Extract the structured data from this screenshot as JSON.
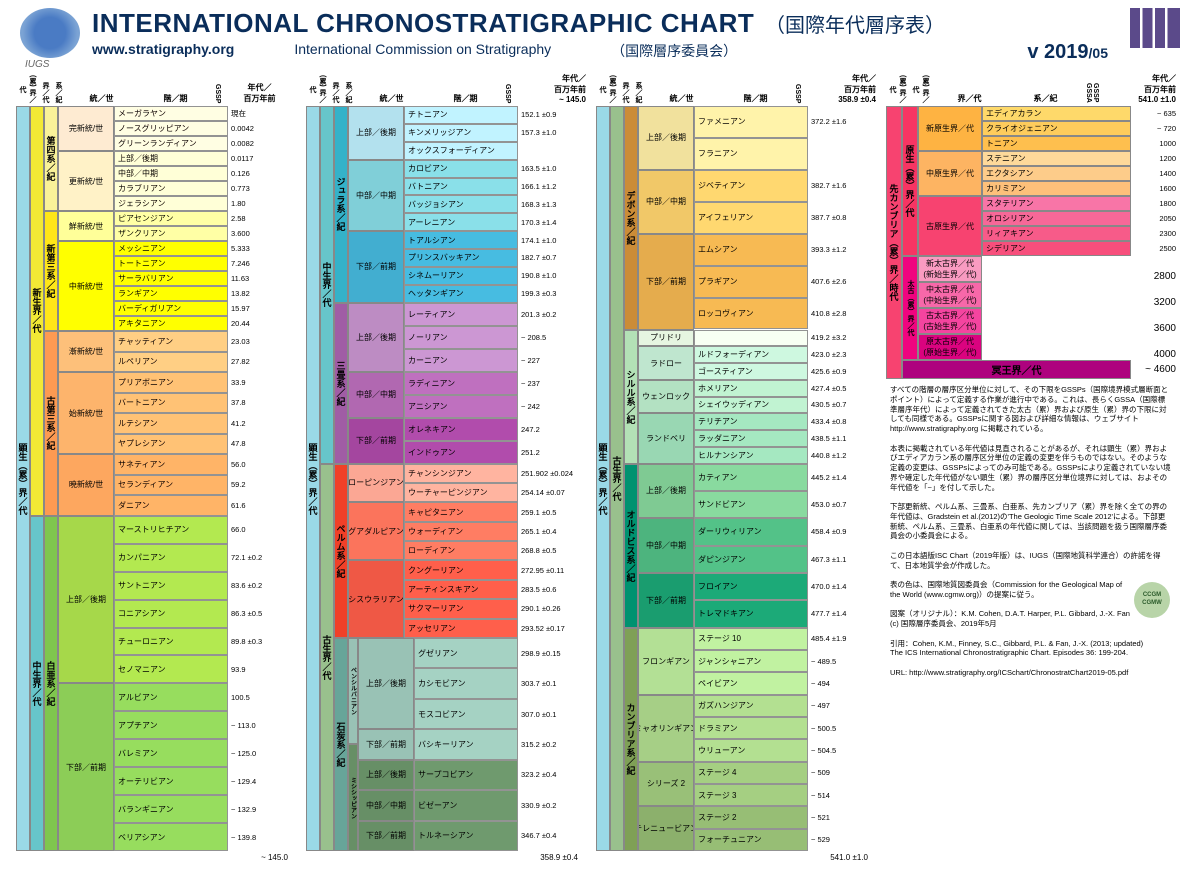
{
  "header": {
    "title": "INTERNATIONAL CHRONOSTRATIGRAPHIC CHART",
    "title_jp": "（国際年代層序表）",
    "url": "www.stratigraphy.org",
    "commission": "International Commission on Stratigraphy",
    "commission_jp": "（国際層序委員会）",
    "version": "v 2019",
    "version_sub": "/05",
    "logo_label": "IUGS"
  },
  "column_headers": {
    "eonothem": "(累) 界／代",
    "erathem": "界／代",
    "system": "系／紀",
    "series": "統／世",
    "stage": "階／期",
    "gssp": "GSSP",
    "age": "年代／\n百万年前",
    "gssa": "GSSP\nGSSA"
  },
  "colors": {
    "phanerozoic": "#9ad9e7",
    "cenozoic": "#f2e935",
    "mesozoic": "#67c5ca",
    "paleozoic": "#99c08d",
    "quaternary": "#f9f299",
    "neogene": "#ffe619",
    "paleogene": "#fd9a52",
    "cretaceous": "#7fc64e",
    "jurassic": "#34b2c9",
    "triassic": "#a05da5",
    "permian": "#f04028",
    "carboniferous": "#67a599",
    "pennsylvanian": "#99c2b5",
    "mississippian": "#678f66",
    "devonian": "#cb8c37",
    "silurian": "#b3e1b6",
    "ordovician": "#009270",
    "cambrian": "#7fa056",
    "precambrian": "#f74370",
    "proterozoic": "#f73563",
    "neoproterozoic": "#feb342",
    "mesoproterozoic": "#fdb462",
    "paleoproterozoic": "#f74370",
    "archean": "#f0047f",
    "neoarchean": "#f99bc1",
    "mesoarchean": "#f768a9",
    "paleoarchean": "#f4449f",
    "eoarchean": "#da037f",
    "hadean": "#ae027e",
    "holocene": "#feebd2",
    "pleistocene": "#fff2c7",
    "pliocene": "#ffff99",
    "miocene": "#ffff00",
    "oligocene": "#fdc07a",
    "eocene": "#fdb46c",
    "paleocene": "#fda75f",
    "upper_cret": "#a6d84a",
    "lower_cret": "#8ccd57",
    "upper_jur": "#b3e1ee",
    "middle_jur": "#80cfd8",
    "lower_jur": "#42aed0",
    "upper_tri": "#bd8cc3",
    "middle_tri": "#b168b1",
    "lower_tri": "#a4469f",
    "lopingian": "#fba794",
    "guadalupian": "#fb745c",
    "cisuralian": "#ef5845",
    "upper_dev": "#f1e19d",
    "middle_dev": "#f1c868",
    "lower_dev": "#e5ac4d",
    "pridoli": "#e6f5e1",
    "ludlow": "#bfe6cf",
    "wenlock": "#b3e1c2",
    "llandovery": "#99d7b3",
    "upper_ord": "#7fca93",
    "middle_ord": "#4db47e",
    "lower_ord": "#1a9d6f",
    "furongian": "#b3e095",
    "miaolingian": "#a6cf86",
    "series2": "#99c078",
    "terreneuvian": "#8cb06c",
    "ediacaran": "#fed96a",
    "cryogenian": "#fecc5c",
    "tonian": "#febf4e",
    "stenian": "#fed99a",
    "ectasian": "#fdcc8a",
    "calymmian": "#fdc07a",
    "statherian": "#f875a7",
    "orosirian": "#f76898",
    "rhyacian": "#f75b89",
    "siderian": "#f74f7c"
  },
  "col1": {
    "eon": "顕生（累）界／代",
    "era1": {
      "label": "新生界／代",
      "color": "cenozoic"
    },
    "era2": {
      "label": "中生界／代",
      "color": "mesozoic"
    },
    "sys1": {
      "label": "第四系／紀",
      "color": "quaternary"
    },
    "sys2": {
      "label": "新第三系／紀",
      "color": "neogene"
    },
    "sys3": {
      "label": "古第三系／紀",
      "color": "paleogene"
    },
    "sys4": {
      "label": "白亜系／紀",
      "color": "cretaceous"
    },
    "series": [
      {
        "label": "完新統/世",
        "color": "holocene",
        "stages": [
          {
            "l": "メーガラヤン",
            "a": "現在"
          },
          {
            "l": "ノースグリッピアン",
            "a": "0.0042"
          },
          {
            "l": "グリーンランディアン",
            "a": "0.0082"
          }
        ]
      },
      {
        "label": "更新統/世",
        "color": "pleistocene",
        "stages": [
          {
            "l": "上部／後期",
            "a": "0.0117"
          },
          {
            "l": "中部／中期",
            "a": "0.126"
          },
          {
            "l": "カラブリアン",
            "a": "0.773"
          },
          {
            "l": "ジェラシアン",
            "a": "1.80"
          }
        ]
      },
      {
        "label": "鮮新統/世",
        "color": "pliocene",
        "stages": [
          {
            "l": "ピアセンジアン",
            "a": "2.58"
          },
          {
            "l": "ザンクリアン",
            "a": "3.600"
          }
        ]
      },
      {
        "label": "中新統/世",
        "color": "miocene",
        "stages": [
          {
            "l": "メッシニアン",
            "a": "5.333"
          },
          {
            "l": "トートニアン",
            "a": "7.246"
          },
          {
            "l": "サーラバリアン",
            "a": "11.63"
          },
          {
            "l": "ランギアン",
            "a": "13.82"
          },
          {
            "l": "バーディガリアン",
            "a": "15.97"
          },
          {
            "l": "アキタニアン",
            "a": "20.44"
          }
        ]
      },
      {
        "label": "漸新統/世",
        "color": "oligocene",
        "stages": [
          {
            "l": "チャッティアン",
            "a": "23.03"
          },
          {
            "l": "ルペリアン",
            "a": "27.82"
          }
        ]
      },
      {
        "label": "始新統/世",
        "color": "eocene",
        "stages": [
          {
            "l": "プリアボニアン",
            "a": "33.9"
          },
          {
            "l": "バートニアン",
            "a": "37.8"
          },
          {
            "l": "ルテシアン",
            "a": "41.2"
          },
          {
            "l": "ヤプレシアン",
            "a": "47.8"
          }
        ]
      },
      {
        "label": "暁新統/世",
        "color": "paleocene",
        "stages": [
          {
            "l": "サネティアン",
            "a": "56.0"
          },
          {
            "l": "セランディアン",
            "a": "59.2"
          },
          {
            "l": "ダニアン",
            "a": "61.6"
          }
        ]
      },
      {
        "label": "上部／後期",
        "color": "upper_cret",
        "stages": [
          {
            "l": "マーストリヒチアン",
            "a": "66.0"
          },
          {
            "l": "カンパニアン",
            "a": "72.1 ±0.2"
          },
          {
            "l": "サントニアン",
            "a": "83.6 ±0.2"
          },
          {
            "l": "コニアシアン",
            "a": "86.3 ±0.5"
          },
          {
            "l": "チューロニアン",
            "a": "89.8 ±0.3"
          },
          {
            "l": "セノマニアン",
            "a": "93.9"
          }
        ]
      },
      {
        "label": "下部／前期",
        "color": "lower_cret",
        "stages": [
          {
            "l": "アルビアン",
            "a": "100.5"
          },
          {
            "l": "アプチアン",
            "a": "~ 113.0"
          },
          {
            "l": "バレミアン",
            "a": "~ 125.0"
          },
          {
            "l": "オーテリビアン",
            "a": "~ 129.4"
          },
          {
            "l": "バランギニアン",
            "a": "~ 132.9"
          },
          {
            "l": "ベリアシアン",
            "a": "~ 139.8"
          }
        ]
      }
    ],
    "bottom_age": "~ 145.0"
  },
  "col2": {
    "top_age": "~ 145.0",
    "eon": "顕生（累）界／代",
    "era1": {
      "label": "中生界／代",
      "color": "mesozoic"
    },
    "era2": {
      "label": "古生界／代",
      "color": "paleozoic"
    },
    "sys1": {
      "label": "ジュラ系／紀",
      "color": "jurassic"
    },
    "sys2": {
      "label": "三畳系／紀",
      "color": "triassic"
    },
    "sys3": {
      "label": "ペルム系／紀",
      "color": "permian"
    },
    "sys4": {
      "label": "石炭系／紀",
      "color": "carboniferous"
    },
    "sys4a": {
      "label": "ペンシルバニアン",
      "color": "pennsylvanian"
    },
    "sys4b": {
      "label": "ミシシッピアン",
      "color": "mississippian"
    },
    "series": [
      {
        "label": "上部／後期",
        "color": "upper_jur",
        "stages": [
          {
            "l": "チトニアン",
            "a": "152.1 ±0.9"
          },
          {
            "l": "キンメリッジアン",
            "a": "157.3 ±1.0"
          },
          {
            "l": "オックスフォーディアン",
            "a": ""
          }
        ]
      },
      {
        "label": "中部／中期",
        "color": "middle_jur",
        "stages": [
          {
            "l": "カロビアン",
            "a": "163.5 ±1.0"
          },
          {
            "l": "バトニアン",
            "a": "166.1 ±1.2"
          },
          {
            "l": "バッジョシアン",
            "a": "168.3 ±1.3"
          },
          {
            "l": "アーレニアン",
            "a": "170.3 ±1.4"
          }
        ]
      },
      {
        "label": "下部／前期",
        "color": "lower_jur",
        "stages": [
          {
            "l": "トアルシアン",
            "a": "174.1 ±1.0"
          },
          {
            "l": "プリンスバッキアン",
            "a": "182.7 ±0.7"
          },
          {
            "l": "シネムーリアン",
            "a": "190.8 ±1.0"
          },
          {
            "l": "ヘッタンギアン",
            "a": "199.3 ±0.3"
          }
        ]
      },
      {
        "label": "上部／後期",
        "color": "upper_tri",
        "stages": [
          {
            "l": "レーティアン",
            "a": "201.3 ±0.2"
          },
          {
            "l": "ノーリアン",
            "a": "~ 208.5"
          },
          {
            "l": "カーニアン",
            "a": "~ 227"
          }
        ]
      },
      {
        "label": "中部／中期",
        "color": "middle_tri",
        "stages": [
          {
            "l": "ラディニアン",
            "a": "~ 237"
          },
          {
            "l": "アニシアン",
            "a": "~ 242"
          }
        ]
      },
      {
        "label": "下部／前期",
        "color": "lower_tri",
        "stages": [
          {
            "l": "オレネキアン",
            "a": "247.2"
          },
          {
            "l": "インドゥアン",
            "a": "251.2"
          }
        ]
      },
      {
        "label": "ローピンジアン",
        "color": "lopingian",
        "stages": [
          {
            "l": "チャンシンジアン",
            "a": "251.902 ±0.024"
          },
          {
            "l": "ウーチャーピンジアン",
            "a": "254.14 ±0.07"
          }
        ]
      },
      {
        "label": "グアダルピアン",
        "color": "guadalupian",
        "stages": [
          {
            "l": "キャピタニアン",
            "a": "259.1 ±0.5"
          },
          {
            "l": "ウォーディアン",
            "a": "265.1 ±0.4"
          },
          {
            "l": "ローディアン",
            "a": "268.8 ±0.5"
          }
        ]
      },
      {
        "label": "シスウラリアン",
        "color": "cisuralian",
        "stages": [
          {
            "l": "クングーリアン",
            "a": "272.95 ±0.11"
          },
          {
            "l": "アーティンスキアン",
            "a": "283.5 ±0.6"
          },
          {
            "l": "サクマーリアン",
            "a": "290.1 ±0.26"
          },
          {
            "l": "アッセリアン",
            "a": "293.52 ±0.17"
          }
        ]
      },
      {
        "label": "上部／後期",
        "color": "pennsylvanian",
        "stages": [
          {
            "l": "グゼリアン",
            "a": "298.9 ±0.15"
          },
          {
            "l": "カシモビアン",
            "a": "303.7 ±0.1"
          },
          {
            "l": "モスコビアン",
            "a": "307.0 ±0.1"
          }
        ]
      },
      {
        "label": "下部／前期",
        "color": "pennsylvanian",
        "stages": [
          {
            "l": "バシキーリアン",
            "a": "315.2 ±0.2"
          }
        ]
      },
      {
        "label": "上部／後期",
        "color": "mississippian",
        "stages": [
          {
            "l": "サープコビアン",
            "a": "323.2 ±0.4"
          }
        ]
      },
      {
        "label": "中部／中期",
        "color": "mississippian",
        "stages": [
          {
            "l": "ビゼーアン",
            "a": "330.9 ±0.2"
          }
        ]
      },
      {
        "label": "下部／前期",
        "color": "mississippian",
        "stages": [
          {
            "l": "トルネーシアン",
            "a": "346.7 ±0.4"
          }
        ]
      }
    ],
    "bottom_age": "358.9 ±0.4"
  },
  "col3": {
    "top_age": "358.9 ±0.4",
    "eon": "顕生（累）界／代",
    "era": {
      "label": "古生界／代",
      "color": "paleozoic"
    },
    "sys1": {
      "label": "デボン系／紀",
      "color": "devonian"
    },
    "sys2": {
      "label": "シルル系／紀",
      "color": "silurian"
    },
    "sys3": {
      "label": "オルドビス系／紀",
      "color": "ordovician"
    },
    "sys4": {
      "label": "カンブリア系／紀",
      "color": "cambrian"
    },
    "series": [
      {
        "label": "上部／後期",
        "color": "upper_dev",
        "stages": [
          {
            "l": "ファメニアン",
            "a": "372.2 ±1.6"
          },
          {
            "l": "フラニアン",
            "a": ""
          }
        ]
      },
      {
        "label": "中部／中期",
        "color": "middle_dev",
        "stages": [
          {
            "l": "ジベティアン",
            "a": "382.7 ±1.6"
          },
          {
            "l": "アイフェリアン",
            "a": "387.7 ±0.8"
          }
        ]
      },
      {
        "label": "下部／前期",
        "color": "lower_dev",
        "stages": [
          {
            "l": "エムシアン",
            "a": "393.3 ±1.2"
          },
          {
            "l": "プラギアン",
            "a": "407.6 ±2.6"
          },
          {
            "l": "ロッコヴィアン",
            "a": "410.8 ±2.8"
          }
        ]
      },
      {
        "label": "プリドリ",
        "color": "pridoli",
        "stages": [
          {
            "l": "",
            "a": "419.2 ±3.2"
          }
        ]
      },
      {
        "label": "ラドロー",
        "color": "ludlow",
        "stages": [
          {
            "l": "ルドフォーディアン",
            "a": "423.0 ±2.3"
          },
          {
            "l": "ゴースティアン",
            "a": "425.6 ±0.9"
          }
        ]
      },
      {
        "label": "ウェンロック",
        "color": "wenlock",
        "stages": [
          {
            "l": "ホメリアン",
            "a": "427.4 ±0.5"
          },
          {
            "l": "シェイウッディアン",
            "a": "430.5 ±0.7"
          }
        ]
      },
      {
        "label": "ランドベリ",
        "color": "llandovery",
        "stages": [
          {
            "l": "テリチアン",
            "a": "433.4 ±0.8"
          },
          {
            "l": "ラッダニアン",
            "a": "438.5 ±1.1"
          },
          {
            "l": "ヒルナンシアン",
            "a": "440.8 ±1.2"
          }
        ]
      },
      {
        "label": "上部／後期",
        "color": "upper_ord",
        "stages": [
          {
            "l": "カティアン",
            "a": "445.2 ±1.4"
          },
          {
            "l": "サンドビアン",
            "a": "453.0 ±0.7"
          }
        ]
      },
      {
        "label": "中部／中期",
        "color": "middle_ord",
        "stages": [
          {
            "l": "ダーリウィリアン",
            "a": "458.4 ±0.9"
          },
          {
            "l": "ダピンジアン",
            "a": "467.3 ±1.1"
          }
        ]
      },
      {
        "label": "下部／前期",
        "color": "lower_ord",
        "stages": [
          {
            "l": "フロイアン",
            "a": "470.0 ±1.4"
          },
          {
            "l": "トレマドキアン",
            "a": "477.7 ±1.4"
          }
        ]
      },
      {
        "label": "フロンギアン",
        "color": "furongian",
        "stages": [
          {
            "l": "ステージ 10",
            "a": "485.4 ±1.9"
          },
          {
            "l": "ジャンシャニアン",
            "a": "~ 489.5"
          },
          {
            "l": "ペイビアン",
            "a": "~ 494"
          }
        ]
      },
      {
        "label": "ミャオリンギアン",
        "color": "miaolingian",
        "stages": [
          {
            "l": "ガズハンジアン",
            "a": "~ 497"
          },
          {
            "l": "ドラミアン",
            "a": "~ 500.5"
          },
          {
            "l": "ウリューアン",
            "a": "~ 504.5"
          }
        ]
      },
      {
        "label": "シリーズ 2",
        "color": "series2",
        "stages": [
          {
            "l": "ステージ 4",
            "a": "~ 509"
          },
          {
            "l": "ステージ 3",
            "a": "~ 514"
          }
        ]
      },
      {
        "label": "テレニュービアン",
        "color": "terreneuvian",
        "stages": [
          {
            "l": "ステージ 2",
            "a": "~ 521"
          },
          {
            "l": "フォーチュニアン",
            "a": "~ 529"
          }
        ]
      }
    ],
    "bottom_age": "541.0 ±1.0"
  },
  "col4": {
    "top_age": "541.0 ±1.0",
    "eon1": {
      "label": "先カンブリア（累）界／時代",
      "color": "precambrian"
    },
    "eon2": {
      "label": "原生（累）界／代",
      "color": "proterozoic"
    },
    "eon3": {
      "label": "太古（累）界／代",
      "color": "archean"
    },
    "era": [
      {
        "label": "新原生界／代",
        "color": "neoproterozoic",
        "stages": [
          {
            "l": "エディアカラン",
            "c": "ediacaran",
            "a": "~ 635"
          },
          {
            "l": "クライオジェニアン",
            "c": "cryogenian",
            "a": "~ 720"
          },
          {
            "l": "トニアン",
            "c": "tonian",
            "a": "1000"
          }
        ]
      },
      {
        "label": "中原生界／代",
        "color": "mesoproterozoic",
        "stages": [
          {
            "l": "ステニアン",
            "c": "stenian",
            "a": "1200"
          },
          {
            "l": "エクタシアン",
            "c": "ectasian",
            "a": "1400"
          },
          {
            "l": "カリミアン",
            "c": "calymmian",
            "a": "1600"
          }
        ]
      },
      {
        "label": "古原生界／代",
        "color": "paleoproterozoic",
        "stages": [
          {
            "l": "スタテリアン",
            "c": "statherian",
            "a": "1800"
          },
          {
            "l": "オロシリアン",
            "c": "orosirian",
            "a": "2050"
          },
          {
            "l": "リィアキアン",
            "c": "rhyacian",
            "a": "2300"
          },
          {
            "l": "シデリアン",
            "c": "siderian",
            "a": "2500"
          }
        ]
      },
      {
        "label": "新太古界／代\n(新始生界／代)",
        "color": "neoarchean",
        "stages": [],
        "a": "2800"
      },
      {
        "label": "中太古界／代\n(中始生界／代)",
        "color": "mesoarchean",
        "stages": [],
        "a": "3200"
      },
      {
        "label": "古太古界／代\n(古始生界／代)",
        "color": "paleoarchean",
        "stages": [],
        "a": "3600"
      },
      {
        "label": "原太古界／代\n(原始生界／代)",
        "color": "eoarchean",
        "stages": [],
        "a": "4000"
      }
    ],
    "hadean": {
      "label": "冥王界／代",
      "color": "hadean",
      "a": "~ 4600"
    }
  },
  "footer": {
    "p1": "すべての階層の層序区分単位に対して、その下限をGSSPs（国際境界模式層断面とポイント）によって定義する作業が進行中である。これは、長らくGSSA（国際標準層序年代）によって定義されてきた太古（累）界および原生（累）界の下限に対しても同様である。GSSPsに関する図および詳細な情報は、ウェブサイト http://www.stratigraphy.org に掲載されている。",
    "p2": "本表に掲載されている年代値は見直されることがあるが、それは顕生（累）界およびエディアカラン系の層序区分単位の定義の変更を伴うものではない。そのような定義の変更は、GSSPsによってのみ可能である。GSSPsにより定義されていない境界や確定した年代値がない顕生（累）界の層序区分単位境界に対しては、およその年代値を「~」を付して示した。",
    "p3": "下部更新統、ペルム系、三畳系、白亜系、先カンブリア（累）界を除く全ての界の年代値は、Gradstein et al.(2012)の'The Geologic Time Scale 2012'による。下部更新統、ペルム系、三畳系、白亜系の年代値に関しては、当該問題を扱う国際層序委員会の小委員会による。",
    "p4": "この日本語版ISC Chart（2019年版）は、IUGS（国際地質科学連合）の許諾を得て、日本地質学会が作成した。",
    "p5": "表の色は、国際地質図委員会（Commission for the Geological Map of the World (www.cgmw.org)）の提案に従う。",
    "p6": "図案（オリジナル）：K.M. Cohen, D.A.T. Harper, P.L. Gibbard, J.-X. Fan\n(c) 国際層序委員会、2019年5月",
    "p7": "引用：Cohen, K.M., Finney, S.C., Gibbard, P.L. & Fan, J.-X. (2013; updated)\nThe ICS International Chronostratigraphic Chart. Episodes 36: 199-204.",
    "p8": "URL: http://www.stratigraphy.org/ICSchart/ChronostratChart2019-05.pdf",
    "ccgm": "CCGM\nCGMW"
  }
}
